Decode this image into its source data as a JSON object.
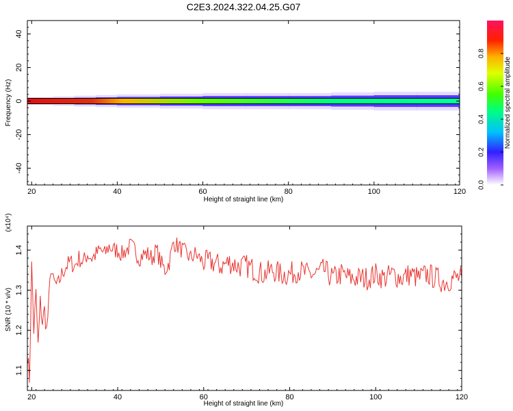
{
  "title": "C2E3.2024.322.04.25.G07",
  "chart_data": [
    {
      "type": "heatmap",
      "xlabel": "Height of straight line (km)",
      "ylabel": "Frequency (Hz)",
      "xlim": [
        19,
        120
      ],
      "ylim": [
        -50,
        48
      ],
      "xticks": [
        20,
        40,
        60,
        80,
        100,
        120
      ],
      "yticks": [
        -40,
        -20,
        0,
        20,
        40
      ],
      "colorbar": {
        "label": "Normalized spectral amplitude",
        "range": [
          0,
          1
        ],
        "ticks": [
          "0.0",
          "0.2",
          "0.4",
          "0.6",
          "0.8"
        ]
      },
      "band": {
        "center_hz": 0,
        "peak_height_km": [
          19,
          33
        ],
        "description_values": {
          "heights_km": [
            19,
            25,
            30,
            35,
            40,
            50,
            60,
            70,
            80,
            90,
            100,
            110,
            120
          ],
          "peak_amplitude": [
            1.0,
            0.98,
            0.95,
            0.9,
            0.8,
            0.7,
            0.65,
            0.6,
            0.55,
            0.5,
            0.45,
            0.45,
            0.45
          ],
          "half_width_hz": [
            1.5,
            1.5,
            2,
            2,
            2.5,
            2.5,
            3,
            3,
            3,
            3,
            3.5,
            3.5,
            3.5
          ]
        }
      }
    },
    {
      "type": "line",
      "xlabel": "Height of straight line (km)",
      "ylabel": "SNR (10 * v/v)",
      "y_multiplier": "(x10⁴)",
      "xlim": [
        19,
        120
      ],
      "ylim": [
        1.05,
        1.46
      ],
      "xticks": [
        20,
        40,
        60,
        80,
        100,
        120
      ],
      "yticks": [
        1.1,
        1.2,
        1.3,
        1.4
      ],
      "series": [
        {
          "color": "#e8312d",
          "x": [
            19,
            19.5,
            20,
            20.5,
            21,
            21.5,
            22,
            22.5,
            23,
            23.5,
            24,
            24.5,
            25,
            26,
            27,
            28,
            29,
            30,
            31,
            32,
            33,
            34,
            35,
            36,
            37,
            38,
            39,
            40,
            41,
            42,
            43,
            44,
            45,
            46,
            47,
            48,
            49,
            50,
            51,
            52,
            53,
            54,
            55,
            56,
            57,
            58,
            59,
            60,
            62,
            64,
            66,
            68,
            70,
            72,
            74,
            76,
            78,
            80,
            82,
            84,
            86,
            88,
            90,
            92,
            94,
            96,
            98,
            100,
            102,
            104,
            106,
            108,
            110,
            112,
            114,
            116,
            118,
            120
          ],
          "y": [
            1.14,
            1.08,
            1.36,
            1.2,
            1.29,
            1.16,
            1.27,
            1.22,
            1.25,
            1.2,
            1.27,
            1.36,
            1.32,
            1.31,
            1.34,
            1.36,
            1.37,
            1.36,
            1.38,
            1.37,
            1.39,
            1.38,
            1.39,
            1.4,
            1.39,
            1.41,
            1.4,
            1.4,
            1.39,
            1.4,
            1.41,
            1.4,
            1.38,
            1.39,
            1.39,
            1.38,
            1.4,
            1.37,
            1.35,
            1.37,
            1.42,
            1.41,
            1.4,
            1.39,
            1.38,
            1.39,
            1.38,
            1.37,
            1.37,
            1.36,
            1.37,
            1.36,
            1.36,
            1.35,
            1.34,
            1.35,
            1.34,
            1.34,
            1.35,
            1.34,
            1.34,
            1.35,
            1.33,
            1.34,
            1.33,
            1.33,
            1.33,
            1.34,
            1.33,
            1.34,
            1.33,
            1.34,
            1.33,
            1.34,
            1.33,
            1.32,
            1.33,
            1.33
          ]
        }
      ]
    }
  ]
}
